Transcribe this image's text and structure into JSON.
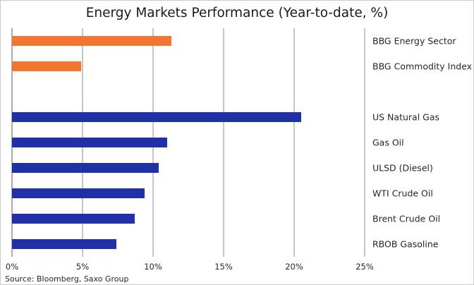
{
  "chart_data": {
    "type": "bar",
    "orientation": "horizontal",
    "title": "Energy Markets Performance (Year-to-date, %)",
    "source": "Source: Bloomberg, Saxo Group",
    "xlim": [
      0,
      25
    ],
    "xticks": [
      "0%",
      "5%",
      "10%",
      "15%",
      "20%",
      "25%"
    ],
    "grid": "vertical",
    "categories": [
      "BBG Energy Sector",
      "BBG Commodity Index",
      "",
      "US Natural Gas",
      "Gas Oil",
      "ULSD (Diesel)",
      "WTI Crude Oil",
      "Brent Crude Oil",
      "RBOB Gasoline"
    ],
    "values": [
      11.3,
      4.9,
      null,
      20.5,
      11.0,
      10.4,
      9.4,
      8.7,
      7.4
    ],
    "colors": [
      "#f2762e",
      "#f2762e",
      null,
      "#1f30a8",
      "#1f30a8",
      "#1f30a8",
      "#1f30a8",
      "#1f30a8",
      "#1f30a8"
    ]
  }
}
